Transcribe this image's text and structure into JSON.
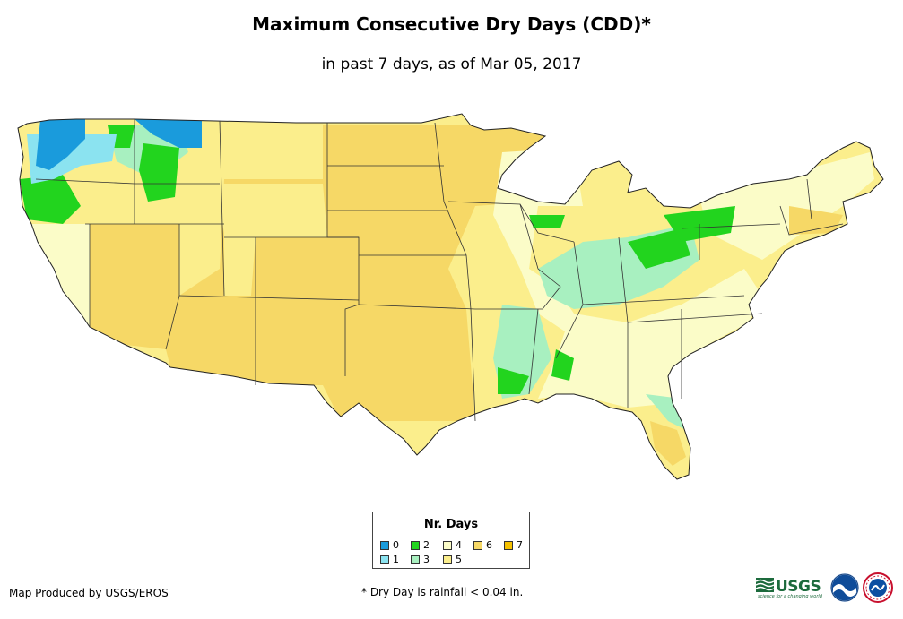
{
  "title": "Maximum Consecutive Dry Days (CDD)*",
  "subtitle": "in past 7 days, as of Mar 05, 2017",
  "legend": {
    "title": "Nr. Days",
    "items": [
      {
        "label": "0",
        "color": "#1a9bdc"
      },
      {
        "label": "1",
        "color": "#8be3f0"
      },
      {
        "label": "2",
        "color": "#22d41e"
      },
      {
        "label": "3",
        "color": "#a8f0c0"
      },
      {
        "label": "4",
        "color": "#fbfcc8"
      },
      {
        "label": "5",
        "color": "#fbee8c"
      },
      {
        "label": "6",
        "color": "#f6d866"
      },
      {
        "label": "7",
        "color": "#f6c200"
      }
    ]
  },
  "producer": "Map Produced by USGS/EROS",
  "footnote": "* Dry Day is rainfall < 0.04 in.",
  "logos": {
    "usgs_text": "USGS",
    "usgs_tagline": "science for a changing world"
  },
  "map": {
    "region": "Contiguous United States",
    "dominant_values": {
      "Pacific Northwest": "0-2",
      "Northern Rockies": "2-5",
      "Great Plains": "6",
      "Southwest": "6",
      "California": "4-5",
      "Midwest": "4-5",
      "Ohio Valley": "2-3",
      "Southeast": "4",
      "Northeast": "4-6",
      "Florida": "3-6"
    }
  }
}
